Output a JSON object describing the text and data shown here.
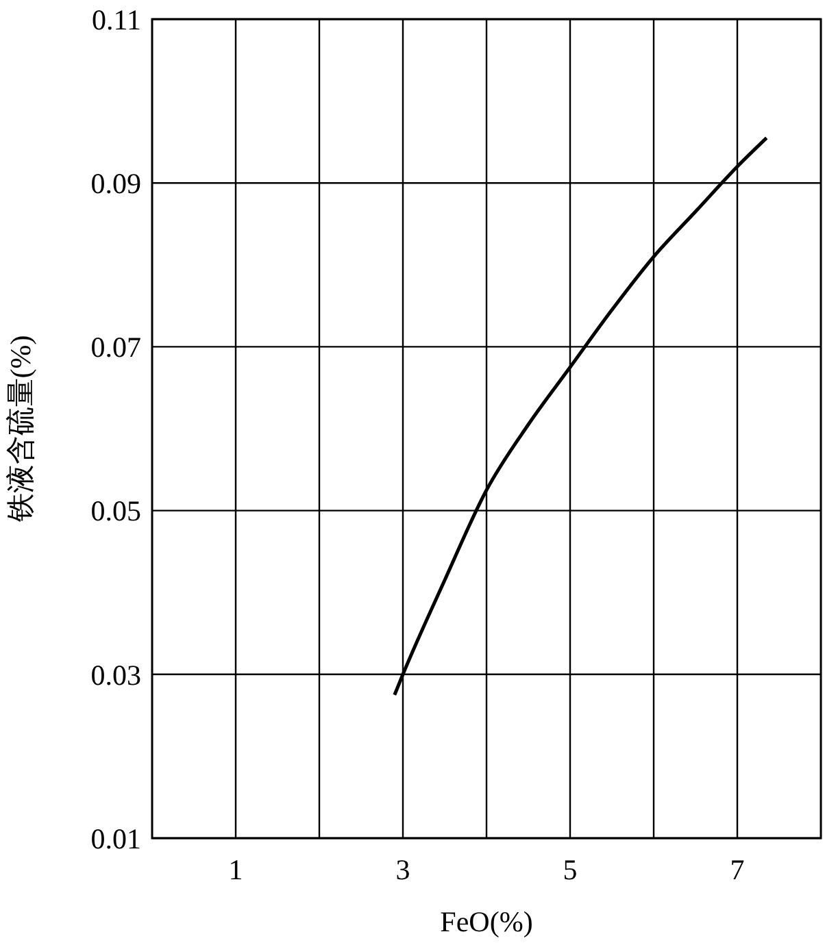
{
  "chart_data": {
    "type": "line",
    "xlabel": "FeO(%)",
    "ylabel": "铁液含硫量(%)",
    "xlim": [
      0,
      8
    ],
    "ylim": [
      0.01,
      0.11
    ],
    "xticks": [
      1,
      {
        "value": 2,
        "label": null
      },
      3,
      {
        "value": 4,
        "label": null
      },
      5,
      {
        "value": 6,
        "label": null
      },
      7
    ],
    "yticks": [
      0.01,
      0.03,
      0.05,
      0.07,
      0.09,
      0.11
    ],
    "grid": true,
    "marker": "none",
    "line_style": "solid",
    "series": [
      {
        "color": "#000000",
        "x": [
          2.9,
          3.0,
          3.5,
          4.0,
          4.5,
          5.0,
          5.5,
          6.0,
          6.5,
          7.0,
          7.35
        ],
        "values": [
          0.0275,
          0.03,
          0.0415,
          0.0525,
          0.0605,
          0.0675,
          0.0745,
          0.081,
          0.0865,
          0.092,
          0.0955
        ]
      }
    ]
  }
}
